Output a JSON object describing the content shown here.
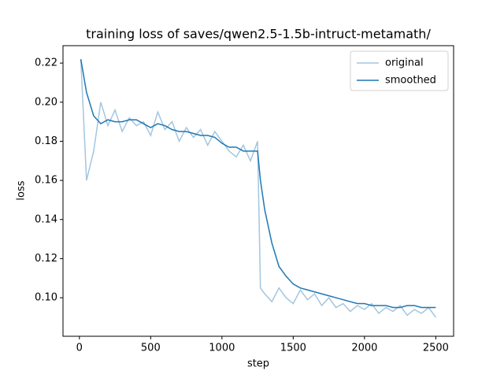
{
  "chart_data": {
    "type": "line",
    "title": "training loss of saves/qwen2.5-1.5b-intruct-metamath/",
    "x_label": "step",
    "y_label": "loss",
    "x": [
      10,
      50,
      100,
      150,
      200,
      250,
      300,
      350,
      400,
      450,
      500,
      550,
      600,
      650,
      700,
      750,
      800,
      850,
      900,
      950,
      1000,
      1050,
      1100,
      1150,
      1200,
      1250,
      1270,
      1300,
      1350,
      1400,
      1450,
      1500,
      1550,
      1600,
      1650,
      1700,
      1750,
      1800,
      1850,
      1900,
      1950,
      2000,
      2050,
      2100,
      2150,
      2200,
      2250,
      2300,
      2350,
      2400,
      2450,
      2500
    ],
    "series": [
      {
        "name": "original",
        "color": "#a3c6e0",
        "values": [
          0.222,
          0.16,
          0.175,
          0.2,
          0.188,
          0.196,
          0.185,
          0.192,
          0.188,
          0.19,
          0.183,
          0.195,
          0.186,
          0.19,
          0.18,
          0.187,
          0.182,
          0.186,
          0.178,
          0.185,
          0.18,
          0.175,
          0.172,
          0.178,
          0.17,
          0.18,
          0.105,
          0.102,
          0.098,
          0.105,
          0.1,
          0.097,
          0.104,
          0.099,
          0.102,
          0.096,
          0.1,
          0.095,
          0.097,
          0.093,
          0.096,
          0.094,
          0.097,
          0.092,
          0.095,
          0.093,
          0.096,
          0.091,
          0.094,
          0.092,
          0.095,
          0.09
        ]
      },
      {
        "name": "smoothed",
        "color": "#1f77b4",
        "values": [
          0.222,
          0.205,
          0.193,
          0.189,
          0.191,
          0.19,
          0.19,
          0.191,
          0.191,
          0.189,
          0.187,
          0.189,
          0.188,
          0.186,
          0.185,
          0.185,
          0.184,
          0.183,
          0.183,
          0.182,
          0.179,
          0.177,
          0.177,
          0.175,
          0.175,
          0.175,
          0.16,
          0.145,
          0.128,
          0.116,
          0.111,
          0.107,
          0.105,
          0.104,
          0.103,
          0.102,
          0.101,
          0.1,
          0.099,
          0.098,
          0.097,
          0.097,
          0.096,
          0.096,
          0.096,
          0.095,
          0.095,
          0.096,
          0.096,
          0.095,
          0.095,
          0.095
        ]
      }
    ],
    "xlim": [
      -115,
      2625
    ],
    "ylim": [
      0.0803,
      0.2289
    ],
    "xticks": [
      0,
      500,
      1000,
      1500,
      2000,
      2500
    ],
    "yticks": [
      {
        "value": 0.1,
        "label": "0.10"
      },
      0.12,
      0.14,
      0.16,
      0.18,
      {
        "value": 0.2,
        "label": "0.20"
      },
      0.22
    ],
    "legend": "upper right"
  }
}
